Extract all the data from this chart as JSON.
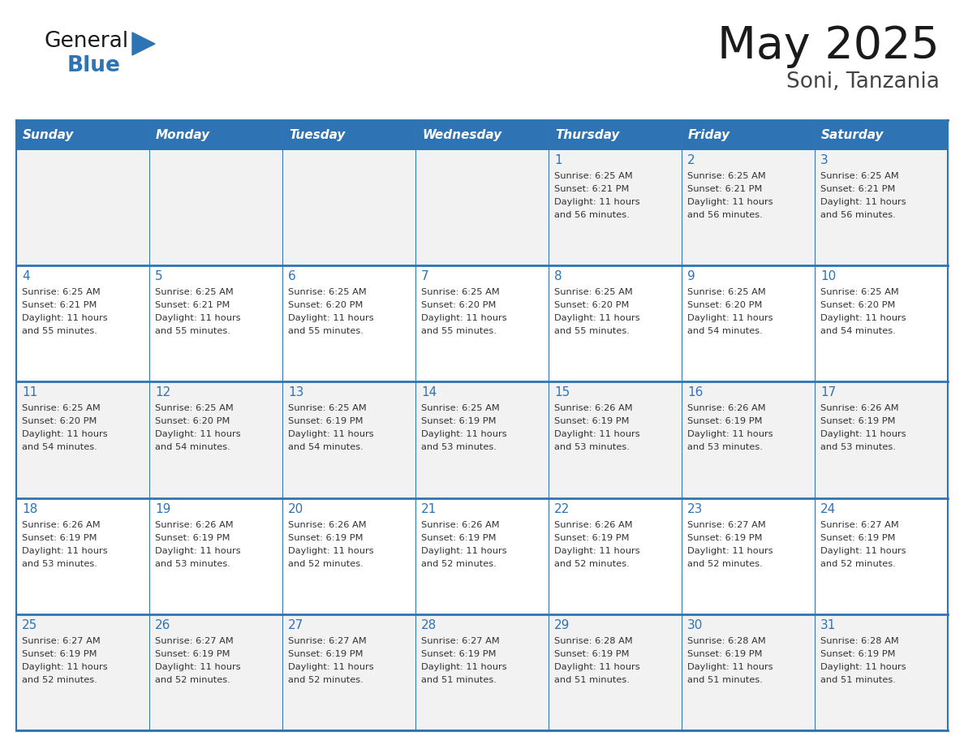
{
  "title": "May 2025",
  "subtitle": "Soni, Tanzania",
  "days_of_week": [
    "Sunday",
    "Monday",
    "Tuesday",
    "Wednesday",
    "Thursday",
    "Friday",
    "Saturday"
  ],
  "header_bg": "#2e74b5",
  "header_text_color": "#ffffff",
  "cell_bg_even": "#f2f2f2",
  "cell_bg_odd": "#ffffff",
  "day_number_color": "#2e74b5",
  "info_text_color": "#333333",
  "border_color": "#2e74b5",
  "background_color": "#ffffff",
  "title_color": "#1a1a1a",
  "subtitle_color": "#444444",
  "generalblue_text_color": "#1a1a1a",
  "generalblue_blue_color": "#2e74b5",
  "calendar_data": [
    [
      null,
      null,
      null,
      null,
      {
        "day": 1,
        "sunrise": "6:25 AM",
        "sunset": "6:21 PM",
        "daylight_hrs": "11 hours",
        "daylight_min": "56 minutes"
      },
      {
        "day": 2,
        "sunrise": "6:25 AM",
        "sunset": "6:21 PM",
        "daylight_hrs": "11 hours",
        "daylight_min": "56 minutes"
      },
      {
        "day": 3,
        "sunrise": "6:25 AM",
        "sunset": "6:21 PM",
        "daylight_hrs": "11 hours",
        "daylight_min": "56 minutes"
      }
    ],
    [
      {
        "day": 4,
        "sunrise": "6:25 AM",
        "sunset": "6:21 PM",
        "daylight_hrs": "11 hours",
        "daylight_min": "55 minutes"
      },
      {
        "day": 5,
        "sunrise": "6:25 AM",
        "sunset": "6:21 PM",
        "daylight_hrs": "11 hours",
        "daylight_min": "55 minutes"
      },
      {
        "day": 6,
        "sunrise": "6:25 AM",
        "sunset": "6:20 PM",
        "daylight_hrs": "11 hours",
        "daylight_min": "55 minutes"
      },
      {
        "day": 7,
        "sunrise": "6:25 AM",
        "sunset": "6:20 PM",
        "daylight_hrs": "11 hours",
        "daylight_min": "55 minutes"
      },
      {
        "day": 8,
        "sunrise": "6:25 AM",
        "sunset": "6:20 PM",
        "daylight_hrs": "11 hours",
        "daylight_min": "55 minutes"
      },
      {
        "day": 9,
        "sunrise": "6:25 AM",
        "sunset": "6:20 PM",
        "daylight_hrs": "11 hours",
        "daylight_min": "54 minutes"
      },
      {
        "day": 10,
        "sunrise": "6:25 AM",
        "sunset": "6:20 PM",
        "daylight_hrs": "11 hours",
        "daylight_min": "54 minutes"
      }
    ],
    [
      {
        "day": 11,
        "sunrise": "6:25 AM",
        "sunset": "6:20 PM",
        "daylight_hrs": "11 hours",
        "daylight_min": "54 minutes"
      },
      {
        "day": 12,
        "sunrise": "6:25 AM",
        "sunset": "6:20 PM",
        "daylight_hrs": "11 hours",
        "daylight_min": "54 minutes"
      },
      {
        "day": 13,
        "sunrise": "6:25 AM",
        "sunset": "6:19 PM",
        "daylight_hrs": "11 hours",
        "daylight_min": "54 minutes"
      },
      {
        "day": 14,
        "sunrise": "6:25 AM",
        "sunset": "6:19 PM",
        "daylight_hrs": "11 hours",
        "daylight_min": "53 minutes"
      },
      {
        "day": 15,
        "sunrise": "6:26 AM",
        "sunset": "6:19 PM",
        "daylight_hrs": "11 hours",
        "daylight_min": "53 minutes"
      },
      {
        "day": 16,
        "sunrise": "6:26 AM",
        "sunset": "6:19 PM",
        "daylight_hrs": "11 hours",
        "daylight_min": "53 minutes"
      },
      {
        "day": 17,
        "sunrise": "6:26 AM",
        "sunset": "6:19 PM",
        "daylight_hrs": "11 hours",
        "daylight_min": "53 minutes"
      }
    ],
    [
      {
        "day": 18,
        "sunrise": "6:26 AM",
        "sunset": "6:19 PM",
        "daylight_hrs": "11 hours",
        "daylight_min": "53 minutes"
      },
      {
        "day": 19,
        "sunrise": "6:26 AM",
        "sunset": "6:19 PM",
        "daylight_hrs": "11 hours",
        "daylight_min": "53 minutes"
      },
      {
        "day": 20,
        "sunrise": "6:26 AM",
        "sunset": "6:19 PM",
        "daylight_hrs": "11 hours",
        "daylight_min": "52 minutes"
      },
      {
        "day": 21,
        "sunrise": "6:26 AM",
        "sunset": "6:19 PM",
        "daylight_hrs": "11 hours",
        "daylight_min": "52 minutes"
      },
      {
        "day": 22,
        "sunrise": "6:26 AM",
        "sunset": "6:19 PM",
        "daylight_hrs": "11 hours",
        "daylight_min": "52 minutes"
      },
      {
        "day": 23,
        "sunrise": "6:27 AM",
        "sunset": "6:19 PM",
        "daylight_hrs": "11 hours",
        "daylight_min": "52 minutes"
      },
      {
        "day": 24,
        "sunrise": "6:27 AM",
        "sunset": "6:19 PM",
        "daylight_hrs": "11 hours",
        "daylight_min": "52 minutes"
      }
    ],
    [
      {
        "day": 25,
        "sunrise": "6:27 AM",
        "sunset": "6:19 PM",
        "daylight_hrs": "11 hours",
        "daylight_min": "52 minutes"
      },
      {
        "day": 26,
        "sunrise": "6:27 AM",
        "sunset": "6:19 PM",
        "daylight_hrs": "11 hours",
        "daylight_min": "52 minutes"
      },
      {
        "day": 27,
        "sunrise": "6:27 AM",
        "sunset": "6:19 PM",
        "daylight_hrs": "11 hours",
        "daylight_min": "52 minutes"
      },
      {
        "day": 28,
        "sunrise": "6:27 AM",
        "sunset": "6:19 PM",
        "daylight_hrs": "11 hours",
        "daylight_min": "51 minutes"
      },
      {
        "day": 29,
        "sunrise": "6:28 AM",
        "sunset": "6:19 PM",
        "daylight_hrs": "11 hours",
        "daylight_min": "51 minutes"
      },
      {
        "day": 30,
        "sunrise": "6:28 AM",
        "sunset": "6:19 PM",
        "daylight_hrs": "11 hours",
        "daylight_min": "51 minutes"
      },
      {
        "day": 31,
        "sunrise": "6:28 AM",
        "sunset": "6:19 PM",
        "daylight_hrs": "11 hours",
        "daylight_min": "51 minutes"
      }
    ]
  ]
}
